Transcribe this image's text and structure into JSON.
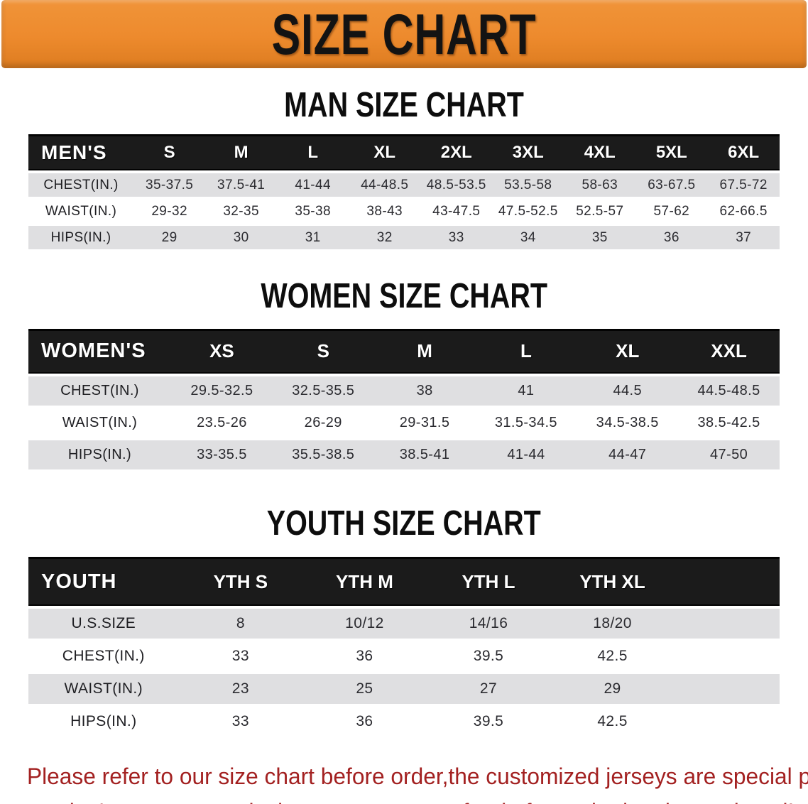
{
  "banner": {
    "title": "SIZE CHART"
  },
  "colors": {
    "accent_orange": "#ED8A2D",
    "table_header_bg": "#1B1B1B",
    "row_stripe": "#DFDFE1",
    "notice_red": "#A32121"
  },
  "sections": [
    {
      "heading": "MAN SIZE CHART",
      "table": {
        "header_label": "MEN'S",
        "columns": [
          "S",
          "M",
          "L",
          "XL",
          "2XL",
          "3XL",
          "4XL",
          "5XL",
          "6XL"
        ],
        "rows": [
          {
            "label": "CHEST(IN.)",
            "values": [
              "35-37.5",
              "37.5-41",
              "41-44",
              "44-48.5",
              "48.5-53.5",
              "53.5-58",
              "58-63",
              "63-67.5",
              "67.5-72"
            ]
          },
          {
            "label": "WAIST(IN.)",
            "values": [
              "29-32",
              "32-35",
              "35-38",
              "38-43",
              "43-47.5",
              "47.5-52.5",
              "52.5-57",
              "57-62",
              "62-66.5"
            ]
          },
          {
            "label": "HIPS(IN.)",
            "values": [
              "29",
              "30",
              "31",
              "32",
              "33",
              "34",
              "35",
              "36",
              "37"
            ]
          }
        ]
      }
    },
    {
      "heading": "WOMEN SIZE CHART",
      "table": {
        "header_label": "WOMEN'S",
        "columns": [
          "XS",
          "S",
          "M",
          "L",
          "XL",
          "XXL"
        ],
        "rows": [
          {
            "label": "CHEST(IN.)",
            "values": [
              "29.5-32.5",
              "32.5-35.5",
              "38",
              "41",
              "44.5",
              "44.5-48.5"
            ]
          },
          {
            "label": "WAIST(IN.)",
            "values": [
              "23.5-26",
              "26-29",
              "29-31.5",
              "31.5-34.5",
              "34.5-38.5",
              "38.5-42.5"
            ]
          },
          {
            "label": "HIPS(IN.)",
            "values": [
              "33-35.5",
              "35.5-38.5",
              "38.5-41",
              "41-44",
              "44-47",
              "47-50"
            ]
          }
        ]
      }
    },
    {
      "heading": "YOUTH SIZE CHART",
      "table": {
        "header_label": "YOUTH",
        "columns": [
          "YTH S",
          "YTH M",
          "YTH L",
          "YTH XL"
        ],
        "rows": [
          {
            "label": "U.S.SIZE",
            "values": [
              "8",
              "10/12",
              "14/16",
              "18/20"
            ]
          },
          {
            "label": "CHEST(IN.)",
            "values": [
              "33",
              "36",
              "39.5",
              "42.5"
            ]
          },
          {
            "label": "WAIST(IN.)",
            "values": [
              "23",
              "25",
              "27",
              "29"
            ]
          },
          {
            "label": "HIPS(IN.)",
            "values": [
              "33",
              "36",
              "39.5",
              "42.5"
            ]
          }
        ]
      }
    }
  ],
  "footer": {
    "line1": "Please refer to our size chart before order,the customized jerseys are special products,",
    "line2": "we don't accept cancel, change, teturn or refund after order has been placed!"
  }
}
